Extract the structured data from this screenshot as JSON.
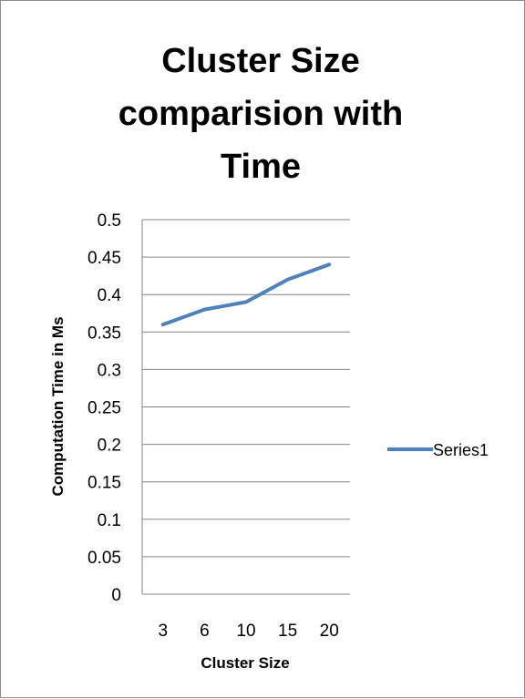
{
  "chart_data": {
    "type": "line",
    "title_lines": [
      "Cluster Size",
      "comparision with",
      "Time"
    ],
    "xlabel": "Cluster Size",
    "ylabel": "Computation Time in Ms",
    "categories": [
      "3",
      "6",
      "10",
      "15",
      "20"
    ],
    "yticks": [
      "0",
      "0.05",
      "0.1",
      "0.15",
      "0.2",
      "0.25",
      "0.3",
      "0.35",
      "0.4",
      "0.45",
      "0.5"
    ],
    "ylim": [
      0,
      0.5
    ],
    "grid": true,
    "legend_position": "right",
    "series": [
      {
        "name": "Series1",
        "values": [
          0.36,
          0.38,
          0.39,
          0.42,
          0.44
        ],
        "color": "#4f81bd"
      }
    ]
  }
}
